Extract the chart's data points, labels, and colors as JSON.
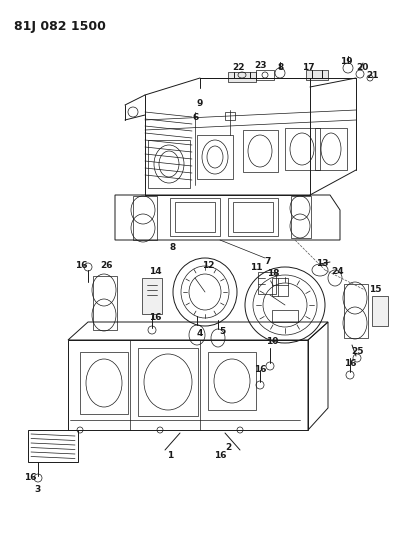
{
  "title": "81J 082 1500",
  "background_color": "#ffffff",
  "fig_width": 3.96,
  "fig_height": 5.33,
  "dpi": 100,
  "line_color": "#1a1a1a",
  "label_fontsize": 6.5,
  "label_fontweight": "bold",
  "title_fontsize": 9,
  "title_fontweight": "bold"
}
